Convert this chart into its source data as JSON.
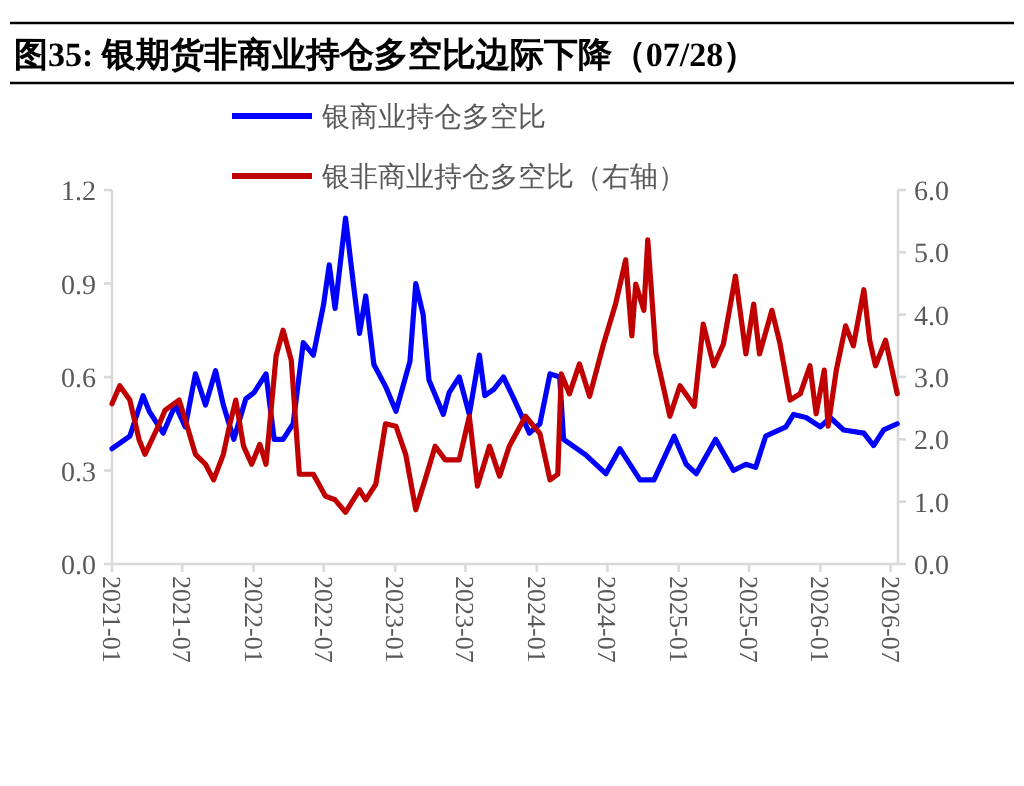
{
  "chart_data": {
    "type": "line",
    "title": "图35:  银期货非商业持仓多空比边际下降（07/28）",
    "xlim": [
      "2021-01-01",
      "2026-07-20"
    ],
    "xticks": [
      {
        "value": "2021-01",
        "label": "2021-01"
      },
      {
        "value": "2021-07",
        "label": "2021-07"
      },
      {
        "value": "2022-01",
        "label": "2022-01"
      },
      {
        "value": "2022-07",
        "label": "2022-07"
      },
      {
        "value": "2023-01",
        "label": "2023-01"
      },
      {
        "value": "2023-07",
        "label": "2023-07"
      },
      {
        "value": "2024-01",
        "label": "2024-01"
      },
      {
        "value": "2024-07",
        "label": "2024-07"
      },
      {
        "value": "2025-01",
        "label": "2025-01"
      },
      {
        "value": "2025-07",
        "label": "2025-07"
      },
      {
        "value": "2026-01",
        "label": "2026-01"
      },
      {
        "value": "2026-07",
        "label": "2026-07"
      }
    ],
    "ylim": [
      0,
      1.2
    ],
    "yticks": [
      {
        "value": 0,
        "label": "0.0"
      },
      {
        "value": 0.3,
        "label": "0.3"
      },
      {
        "value": 0.6,
        "label": "0.6"
      },
      {
        "value": 0.9,
        "label": "0.9"
      },
      {
        "value": 1.2,
        "label": "1.2"
      }
    ],
    "y2lim": [
      0,
      6
    ],
    "y2ticks": [
      {
        "value": 0,
        "label": "0.0"
      },
      {
        "value": 1,
        "label": "1.0"
      },
      {
        "value": 2,
        "label": "2.0"
      },
      {
        "value": 3,
        "label": "3.0"
      },
      {
        "value": 4,
        "label": "4.0"
      },
      {
        "value": 5,
        "label": "5.0"
      },
      {
        "value": 6,
        "label": "6.0"
      }
    ],
    "grid": false,
    "legend": "top",
    "marker": "none",
    "line_style": "solid",
    "series": [
      {
        "name": "银商业持仓多空比",
        "color": "#0000ff",
        "x": [
          "2021-01-01",
          "2021-02-16",
          "2021-03-22",
          "2021-04-07",
          "2021-05-13",
          "2021-06-13",
          "2021-07-09",
          "2021-08-04",
          "2021-08-30",
          "2021-09-25",
          "2021-10-15",
          "2021-11-11",
          "2021-12-12",
          "2022-01-02",
          "2022-02-02",
          "2022-02-23",
          "2022-03-18",
          "2022-04-13",
          "2022-05-09",
          "2022-06-04",
          "2022-06-30",
          "2022-07-15",
          "2022-07-30",
          "2022-08-26",
          "2022-09-16",
          "2022-10-01",
          "2022-10-17",
          "2022-11-07",
          "2022-12-07",
          "2023-01-03",
          "2023-02-08",
          "2023-02-23",
          "2023-03-14",
          "2023-03-29",
          "2023-05-05",
          "2023-05-20",
          "2023-06-15",
          "2023-07-11",
          "2023-08-06",
          "2023-08-20",
          "2023-09-12",
          "2023-10-07",
          "2023-11-03",
          "2023-12-13",
          "2024-01-09",
          "2024-02-04",
          "2024-02-29",
          "2024-03-10",
          "2024-05-06",
          "2024-06-27",
          "2024-08-02",
          "2024-09-23",
          "2024-10-29",
          "2024-12-20",
          "2025-01-20",
          "2025-02-15",
          "2025-04-06",
          "2025-05-22",
          "2025-06-23",
          "2025-07-18",
          "2025-08-13",
          "2025-10-04",
          "2025-10-24",
          "2025-11-25",
          "2026-01-01",
          "2026-01-26",
          "2026-03-02",
          "2026-04-23",
          "2026-05-18",
          "2026-06-13",
          "2026-07-18"
        ],
        "values": [
          0.37,
          0.41,
          0.54,
          0.49,
          0.42,
          0.51,
          0.44,
          0.61,
          0.51,
          0.62,
          0.51,
          0.4,
          0.53,
          0.55,
          0.61,
          0.4,
          0.4,
          0.45,
          0.71,
          0.67,
          0.83,
          0.96,
          0.82,
          1.11,
          0.89,
          0.74,
          0.86,
          0.64,
          0.57,
          0.49,
          0.65,
          0.9,
          0.8,
          0.59,
          0.48,
          0.55,
          0.6,
          0.48,
          0.67,
          0.54,
          0.56,
          0.6,
          0.53,
          0.42,
          0.45,
          0.61,
          0.6,
          0.4,
          0.35,
          0.29,
          0.37,
          0.27,
          0.27,
          0.41,
          0.32,
          0.29,
          0.4,
          0.3,
          0.32,
          0.31,
          0.41,
          0.44,
          0.48,
          0.47,
          0.44,
          0.47,
          0.43,
          0.42,
          0.38,
          0.43,
          0.45
        ]
      },
      {
        "name": "银非商业持仓多空比（右轴）",
        "color": "#c00000",
        "axis": "y2",
        "x": [
          "2021-01-01",
          "2021-01-21",
          "2021-02-16",
          "2021-03-12",
          "2021-03-27",
          "2021-05-03",
          "2021-05-18",
          "2021-06-23",
          "2021-07-09",
          "2021-08-04",
          "2021-08-30",
          "2021-09-20",
          "2021-10-15",
          "2021-11-01",
          "2021-11-16",
          "2021-12-06",
          "2021-12-27",
          "2022-01-17",
          "2022-02-02",
          "2022-02-28",
          "2022-03-18",
          "2022-04-08",
          "2022-04-29",
          "2022-06-04",
          "2022-07-05",
          "2022-07-30",
          "2022-08-26",
          "2022-10-01",
          "2022-10-17",
          "2022-11-12",
          "2022-12-07",
          "2023-01-03",
          "2023-01-28",
          "2023-02-23",
          "2023-03-19",
          "2023-04-14",
          "2023-05-10",
          "2023-06-15",
          "2023-07-11",
          "2023-08-01",
          "2023-09-01",
          "2023-09-27",
          "2023-10-22",
          "2023-12-03",
          "2024-01-09",
          "2024-02-04",
          "2024-02-24",
          "2024-03-04",
          "2024-03-25",
          "2024-04-20",
          "2024-05-16",
          "2024-06-21",
          "2024-07-22",
          "2024-08-17",
          "2024-09-02",
          "2024-09-12",
          "2024-10-03",
          "2024-10-13",
          "2024-11-03",
          "2024-12-09",
          "2025-01-04",
          "2025-02-10",
          "2025-03-05",
          "2025-04-01",
          "2025-04-26",
          "2025-05-27",
          "2025-06-23",
          "2025-07-13",
          "2025-07-28",
          "2025-08-29",
          "2025-09-19",
          "2025-10-15",
          "2025-11-10",
          "2025-12-05",
          "2025-12-21",
          "2026-01-11",
          "2026-01-21",
          "2026-02-11",
          "2026-03-07",
          "2026-03-27",
          "2026-04-23",
          "2026-05-08",
          "2026-05-23",
          "2026-06-18",
          "2026-07-18"
        ],
        "values": [
          2.57,
          2.86,
          2.63,
          1.99,
          1.76,
          2.25,
          2.47,
          2.63,
          2.31,
          1.76,
          1.6,
          1.35,
          1.76,
          2.25,
          2.63,
          1.89,
          1.6,
          1.92,
          1.6,
          3.34,
          3.75,
          3.27,
          1.44,
          1.44,
          1.09,
          1.03,
          0.83,
          1.19,
          1.03,
          1.28,
          2.25,
          2.21,
          1.76,
          0.87,
          1.35,
          1.89,
          1.67,
          1.67,
          2.37,
          1.25,
          1.89,
          1.41,
          1.89,
          2.37,
          2.09,
          1.35,
          1.44,
          3.05,
          2.73,
          3.21,
          2.69,
          3.53,
          4.17,
          4.88,
          3.66,
          4.49,
          4.07,
          5.2,
          3.37,
          2.37,
          2.86,
          2.53,
          3.85,
          3.18,
          3.53,
          4.62,
          3.37,
          4.17,
          3.37,
          4.07,
          3.53,
          2.63,
          2.73,
          3.18,
          2.41,
          3.11,
          2.21,
          3.11,
          3.82,
          3.5,
          4.4,
          3.59,
          3.18,
          3.59,
          2.73
        ]
      }
    ]
  }
}
